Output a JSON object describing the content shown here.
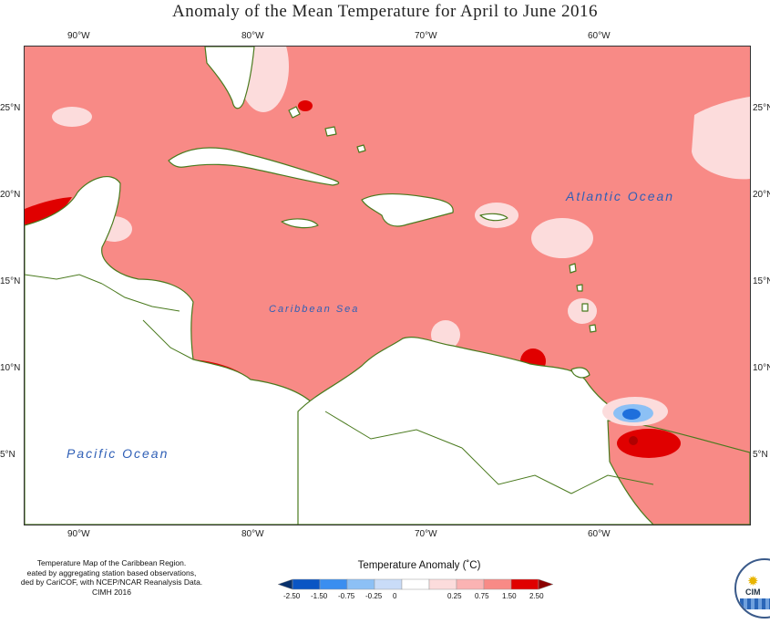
{
  "title": "Anomaly of the Mean Temperature for April to June 2016",
  "axes": {
    "lon_ticks": [
      "90°W",
      "80°W",
      "70°W",
      "60°W"
    ],
    "lat_ticks": [
      "25°N",
      "20°N",
      "15°N",
      "10°N",
      "5°N"
    ]
  },
  "map_labels": {
    "atlantic": "Atlantic Ocean",
    "caribbean": "Caribbean Sea",
    "pacific": "Pacific Ocean"
  },
  "credits": {
    "line1": "Temperature Map of the Caribbean Region.",
    "line2": "eated by aggregating station based observations,",
    "line3": "ded by CariCOF, with NCEP/NCAR Reanalysis Data.",
    "line4": "CIMH 2016"
  },
  "legend": {
    "title": "Temperature Anomaly (˚C)",
    "labels": [
      "-2.50",
      "-1.50",
      "-0.75",
      "-0.25",
      "0",
      "0.25",
      "0.75",
      "1.50",
      "2.50"
    ],
    "colors": [
      "#08306b",
      "#0a55c4",
      "#3a8ef0",
      "#8cc0f5",
      "#c9dcf8",
      "#ffffff",
      "#fcdcdc",
      "#fbb3b3",
      "#f88a86",
      "#e00000",
      "#8b0000"
    ]
  },
  "logo": {
    "text": "CIM"
  },
  "colors": {
    "anomaly_background": "#f88a86",
    "land": "#ffffff",
    "coastline": "#4a7a1e",
    "ocean_label": "#2f5fb6"
  }
}
